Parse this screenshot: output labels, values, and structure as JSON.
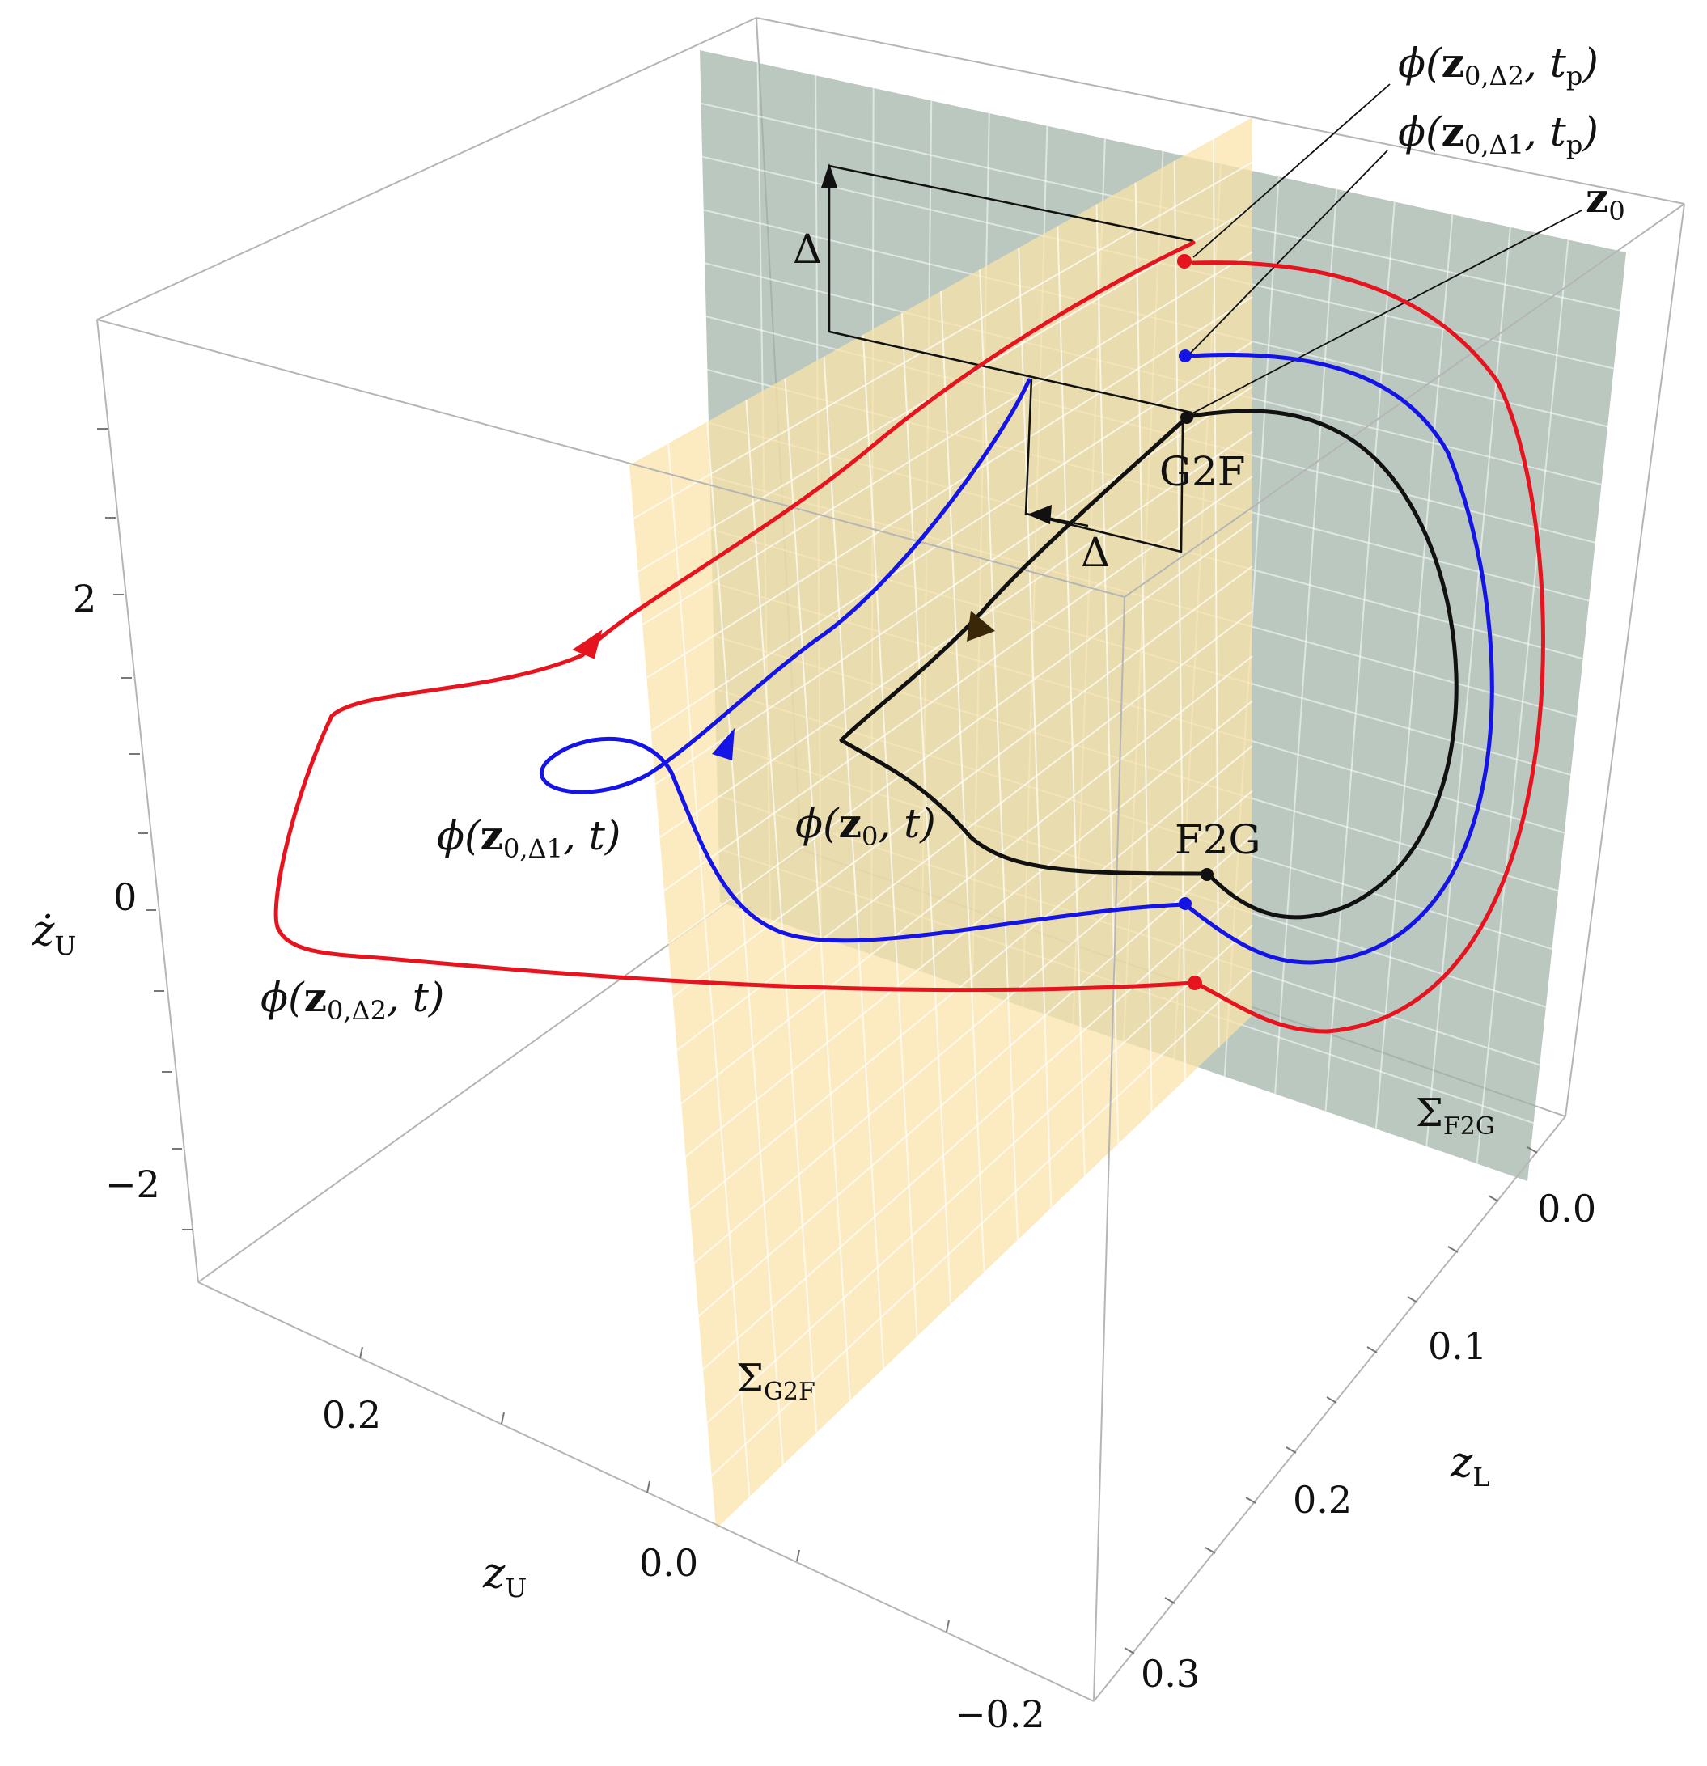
{
  "axes": {
    "zdotU": {
      "label": "ż",
      "sub": "U",
      "ticks": [
        "2",
        "0",
        "−2"
      ]
    },
    "zU": {
      "label": "z",
      "sub": "U",
      "ticks": [
        "0.2",
        "0.0",
        "−0.2"
      ]
    },
    "zL": {
      "label": "z",
      "sub": "L",
      "ticks": [
        "0.0",
        "0.1",
        "0.2",
        "0.3"
      ]
    }
  },
  "planes": {
    "f2g": {
      "name": "Σ",
      "sub": "F2G",
      "color": "#9fb3a7"
    },
    "g2f": {
      "name": "Σ",
      "sub": "G2F",
      "color": "#fbe3a8"
    }
  },
  "markers": {
    "g2f": "G2F",
    "f2g": "F2G",
    "delta": "Δ"
  },
  "annotations": {
    "phi_d2_tp": {
      "phi": "ϕ(",
      "z": "z",
      "sub": "0,Δ2",
      "rest": ", t",
      "tsub": "p",
      "close": ")"
    },
    "phi_d1_tp": {
      "phi": "ϕ(",
      "z": "z",
      "sub": "0,Δ1",
      "rest": ", t",
      "tsub": "p",
      "close": ")"
    },
    "z0": {
      "z": "z",
      "sub": "0"
    },
    "phi_d1_t": {
      "phi": "ϕ(",
      "z": "z",
      "sub": "0,Δ1",
      "rest": ", t)"
    },
    "phi_z0_t": {
      "phi": "ϕ(",
      "z": "z",
      "sub": "0",
      "rest": ", t)"
    },
    "phi_d2_t": {
      "phi": "ϕ(",
      "z": "z",
      "sub": "0,Δ2",
      "rest": ", t)"
    }
  },
  "trajectories": {
    "black": "#111111",
    "blue": "#1414e6",
    "red": "#e6141e"
  }
}
